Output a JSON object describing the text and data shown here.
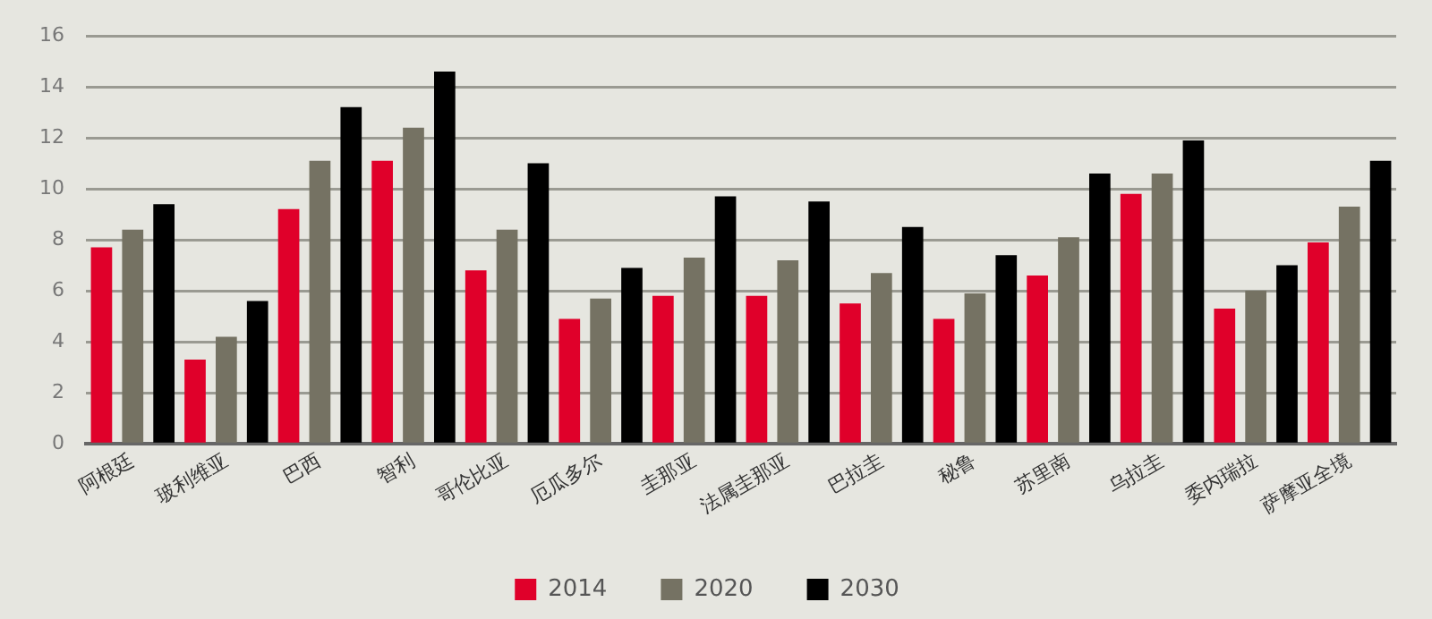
{
  "chart_data": {
    "type": "bar",
    "categories": [
      "阿根廷",
      "玻利维亚",
      "巴西",
      "智利",
      "哥伦比亚",
      "厄瓜多尔",
      "圭那亚",
      "法属圭那亚",
      "巴拉圭",
      "秘鲁",
      "苏里南",
      "乌拉圭",
      "委内瑞拉",
      "萨摩亚全境"
    ],
    "series": [
      {
        "name": "2014",
        "color": "#e0002a",
        "values": [
          7.7,
          3.3,
          9.2,
          11.1,
          6.8,
          4.9,
          5.8,
          5.8,
          5.5,
          4.9,
          6.6,
          9.8,
          5.3,
          7.9
        ]
      },
      {
        "name": "2020",
        "color": "#757263",
        "values": [
          8.4,
          4.2,
          11.1,
          12.4,
          8.4,
          5.7,
          7.3,
          7.2,
          6.7,
          5.9,
          8.1,
          10.6,
          6.0,
          9.3
        ]
      },
      {
        "name": "2030",
        "color": "#000000",
        "values": [
          9.4,
          5.6,
          13.2,
          14.6,
          11.0,
          6.9,
          9.7,
          9.5,
          8.5,
          7.4,
          10.6,
          11.9,
          7.0,
          11.1
        ]
      }
    ],
    "ylim": [
      0,
      16
    ],
    "yticks": [
      0,
      2,
      4,
      6,
      8,
      10,
      12,
      14,
      16
    ],
    "grid": "y",
    "legend": "bottom"
  }
}
